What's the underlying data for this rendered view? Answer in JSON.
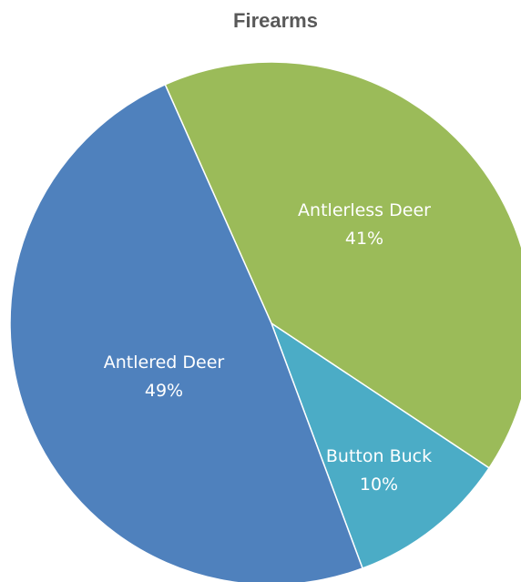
{
  "chart_data": {
    "type": "pie",
    "title": "Firearms",
    "slices": [
      {
        "label": "Antlerless Deer",
        "value": 41,
        "value_label": "41%",
        "color": "#9bbb59"
      },
      {
        "label": "Button Buck",
        "value": 10,
        "value_label": "10%",
        "color": "#4bacc6"
      },
      {
        "label": "Antlered Deer",
        "value": 49,
        "value_label": "49%",
        "color": "#4f81bd"
      }
    ],
    "start_angle_deg": -24,
    "direction": "clockwise",
    "slice_border_color": "#ffffff"
  }
}
